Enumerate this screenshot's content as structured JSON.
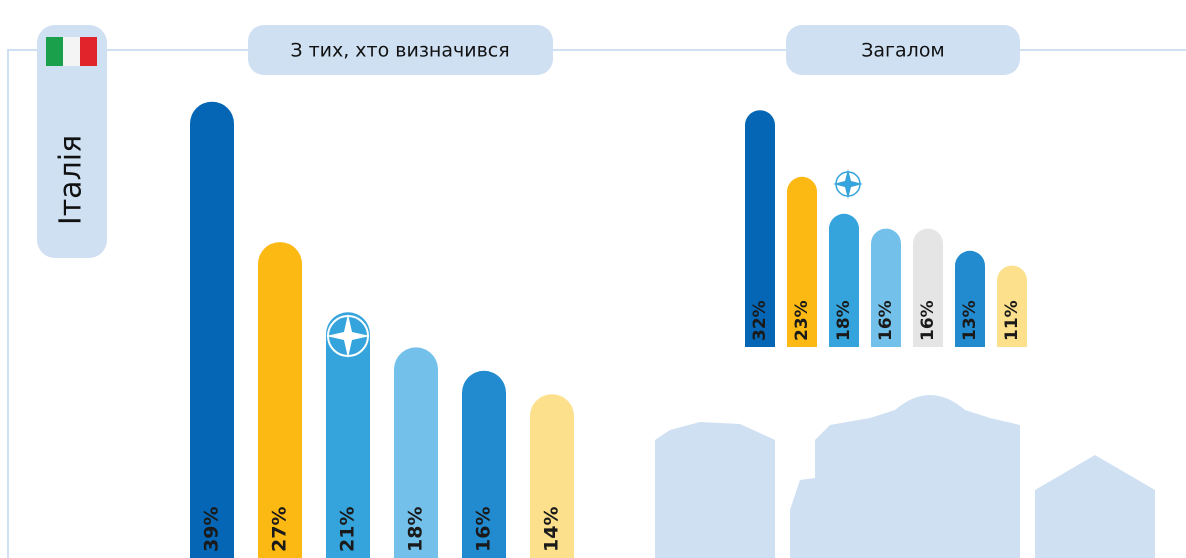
{
  "country": "Італія",
  "chart_data": [
    {
      "type": "bar",
      "title": "З тих, хто визначився",
      "values": [
        39,
        27,
        21,
        18,
        16,
        14
      ],
      "value_labels": [
        "39%",
        "27%",
        "21%",
        "18%",
        "16%",
        "14%"
      ],
      "colors": [
        "#0466b5",
        "#fdb913",
        "#35a4dd",
        "#73c0ea",
        "#228bcf",
        "#fde08b"
      ]
    },
    {
      "type": "bar",
      "title": "Загалом",
      "values": [
        32,
        23,
        18,
        16,
        16,
        13,
        11
      ],
      "value_labels": [
        "32%",
        "23%",
        "18%",
        "16%",
        "16%",
        "13%",
        "11%"
      ],
      "colors": [
        "#0466b5",
        "#fdb913",
        "#35a4dd",
        "#73c0ea",
        "#e5e5e5",
        "#228bcf",
        "#fde08b"
      ]
    }
  ]
}
